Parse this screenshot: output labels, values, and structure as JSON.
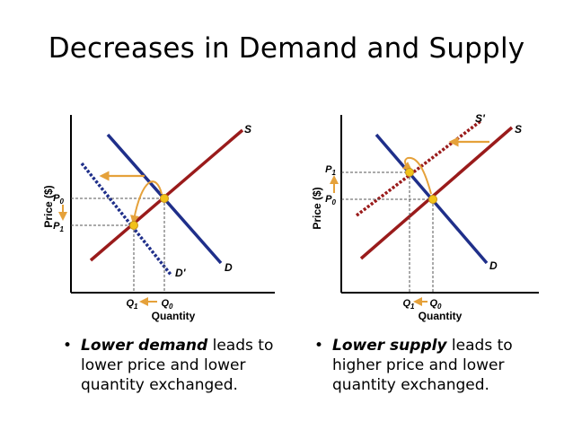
{
  "title": "Decreases in Demand and Supply",
  "colors": {
    "demand": "#1f2f8a",
    "supply": "#9a1b1b",
    "arrow": "#e5a13a",
    "point": "#f2c21a",
    "axis": "#000000",
    "guide": "#555555"
  },
  "graphs": [
    {
      "y_axis_label": "Price ($)",
      "x_axis_label": "Quantity",
      "curve_labels": {
        "s_main": "S",
        "d_main": "D",
        "d_shift": "D'"
      },
      "price_ticks": [
        {
          "main": "P",
          "sub": "0"
        },
        {
          "main": "P",
          "sub": "1"
        }
      ],
      "quantity_ticks": [
        {
          "main": "Q",
          "sub": "1"
        },
        {
          "main": "Q",
          "sub": "0"
        }
      ]
    },
    {
      "y_axis_label": "Price ($)",
      "x_axis_label": "Quantity",
      "curve_labels": {
        "s_main": "S",
        "s_shift": "S'",
        "d_main": "D"
      },
      "price_ticks": [
        {
          "main": "P",
          "sub": "1"
        },
        {
          "main": "P",
          "sub": "0"
        }
      ],
      "quantity_ticks": [
        {
          "main": "Q",
          "sub": "1"
        },
        {
          "main": "Q",
          "sub": "0"
        }
      ]
    }
  ],
  "captions": [
    {
      "bullet": "•",
      "emphasis": "Lower demand",
      "rest": " leads to lower price and lower quantity exchanged."
    },
    {
      "bullet": "•",
      "emphasis": "Lower supply",
      "rest": " leads to higher price and lower quantity exchanged."
    }
  ]
}
